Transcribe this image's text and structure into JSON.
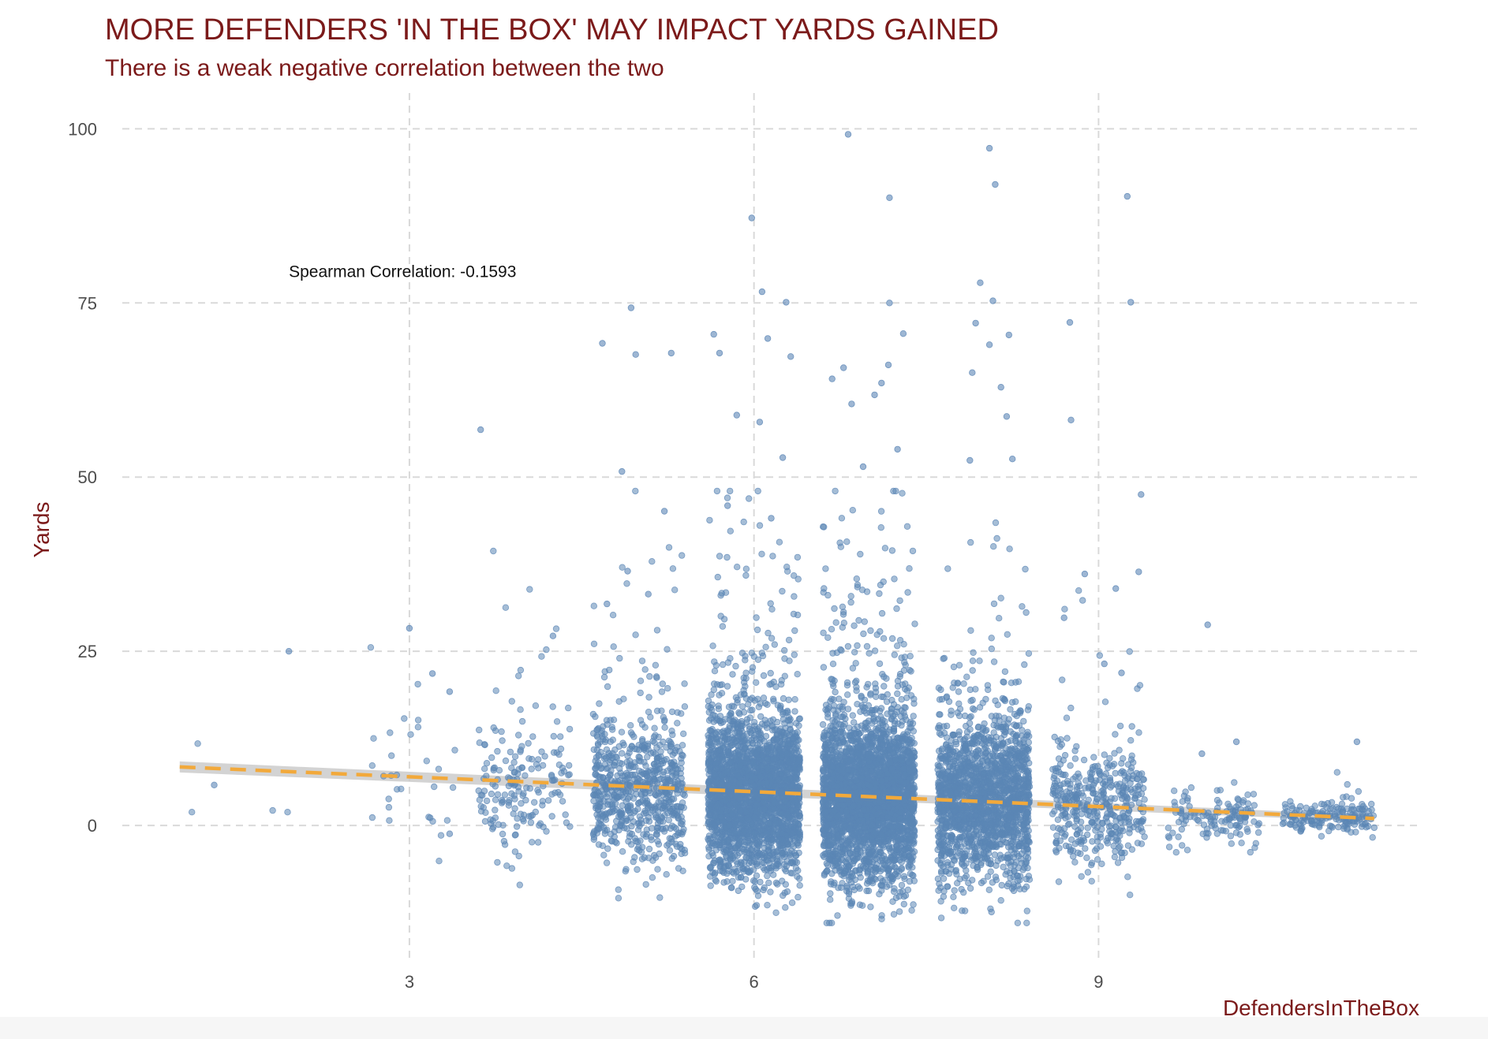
{
  "chart_data": {
    "type": "scatter",
    "title": "MORE DEFENDERS 'IN THE BOX' MAY IMPACT YARDS GAINED",
    "subtitle": "There is a weak negative correlation between the two",
    "xlabel": "DefendersInTheBox",
    "ylabel": "Yards",
    "xlim": [
      0.5,
      11.8
    ],
    "ylim": [
      -19,
      104
    ],
    "x_ticks": [
      3,
      6,
      9
    ],
    "y_ticks": [
      0,
      25,
      50,
      75,
      100
    ],
    "grid": true,
    "jitter_width": 0.4,
    "annotation": {
      "text": "Spearman Correlation: -0.1593",
      "x": 1.95,
      "y": 79.5
    },
    "trend_line": {
      "x": [
        1.0,
        11.4
      ],
      "y": [
        8.4,
        1.0
      ],
      "style": "dashed"
    },
    "groups": [
      {
        "x": 1,
        "count": 2,
        "center": 4.5,
        "spread": 4
      },
      {
        "x": 2,
        "count": 2,
        "center": 8,
        "spread": 6
      },
      {
        "x": 3,
        "count": 30,
        "center": 7,
        "spread": 5
      },
      {
        "x": 4,
        "count": 180,
        "center": 6,
        "spread": 5
      },
      {
        "x": 5,
        "count": 700,
        "center": 5,
        "spread": 5
      },
      {
        "x": 6,
        "count": 2600,
        "center": 4.2,
        "spread": 5.5
      },
      {
        "x": 7,
        "count": 3000,
        "center": 3.8,
        "spread": 5.8
      },
      {
        "x": 8,
        "count": 1800,
        "center": 3.2,
        "spread": 5.5
      },
      {
        "x": 9,
        "count": 420,
        "center": 2.6,
        "spread": 4
      },
      {
        "x": 10,
        "count": 130,
        "center": 1.2,
        "spread": 1.8
      },
      {
        "x": 11,
        "count": 170,
        "center": 1.0,
        "spread": 1.2
      }
    ],
    "outliers": [
      {
        "x": 1.3,
        "y": 5.8
      },
      {
        "x": 1.95,
        "y": 25
      },
      {
        "x": 3.0,
        "y": 28.3
      },
      {
        "x": 3.2,
        "y": 21.8
      },
      {
        "x": 3.35,
        "y": 19.2
      },
      {
        "x": 3.35,
        "y": -1.2
      },
      {
        "x": 3.62,
        "y": 56.8
      },
      {
        "x": 4.25,
        "y": 27.2
      },
      {
        "x": 4.68,
        "y": 69.2
      },
      {
        "x": 4.72,
        "y": 31.8
      },
      {
        "x": 4.85,
        "y": 50.8
      },
      {
        "x": 4.93,
        "y": 74.3
      },
      {
        "x": 4.97,
        "y": 67.6
      },
      {
        "x": 4.9,
        "y": 36.5
      },
      {
        "x": 5.08,
        "y": 33.2
      },
      {
        "x": 5.22,
        "y": 45.1
      },
      {
        "x": 5.28,
        "y": 67.8
      },
      {
        "x": 5.65,
        "y": 70.5
      },
      {
        "x": 5.7,
        "y": 67.8
      },
      {
        "x": 5.77,
        "y": 45.9
      },
      {
        "x": 5.85,
        "y": 58.9
      },
      {
        "x": 5.98,
        "y": 87.2
      },
      {
        "x": 6.05,
        "y": 57.9
      },
      {
        "x": 6.07,
        "y": 76.6
      },
      {
        "x": 6.12,
        "y": 69.9
      },
      {
        "x": 6.28,
        "y": 75.1
      },
      {
        "x": 6.32,
        "y": 67.3
      },
      {
        "x": 6.25,
        "y": 52.8
      },
      {
        "x": 6.15,
        "y": 44.1
      },
      {
        "x": 6.82,
        "y": 99.2
      },
      {
        "x": 6.68,
        "y": 64.1
      },
      {
        "x": 6.78,
        "y": 65.7
      },
      {
        "x": 6.85,
        "y": 60.5
      },
      {
        "x": 7.18,
        "y": 90.1
      },
      {
        "x": 7.18,
        "y": 75.0
      },
      {
        "x": 7.3,
        "y": 70.6
      },
      {
        "x": 7.17,
        "y": 66.1
      },
      {
        "x": 7.11,
        "y": 63.5
      },
      {
        "x": 7.05,
        "y": 61.8
      },
      {
        "x": 7.25,
        "y": 54.0
      },
      {
        "x": 6.95,
        "y": 51.5
      },
      {
        "x": 8.05,
        "y": 97.2
      },
      {
        "x": 8.1,
        "y": 92.0
      },
      {
        "x": 7.97,
        "y": 77.9
      },
      {
        "x": 7.93,
        "y": 72.1
      },
      {
        "x": 8.08,
        "y": 75.3
      },
      {
        "x": 8.05,
        "y": 69.0
      },
      {
        "x": 8.22,
        "y": 70.4
      },
      {
        "x": 7.9,
        "y": 65.0
      },
      {
        "x": 8.15,
        "y": 62.9
      },
      {
        "x": 8.2,
        "y": 58.7
      },
      {
        "x": 7.88,
        "y": 52.4
      },
      {
        "x": 8.25,
        "y": 52.6
      },
      {
        "x": 8.75,
        "y": 72.2
      },
      {
        "x": 8.76,
        "y": 58.2
      },
      {
        "x": 8.88,
        "y": 36.1
      },
      {
        "x": 8.7,
        "y": 29.8
      },
      {
        "x": 9.25,
        "y": 90.3
      },
      {
        "x": 9.28,
        "y": 75.1
      },
      {
        "x": 9.37,
        "y": 47.5
      },
      {
        "x": 9.35,
        "y": 36.4
      },
      {
        "x": 9.15,
        "y": 34.0
      },
      {
        "x": 9.2,
        "y": 21.9
      },
      {
        "x": 9.05,
        "y": 23.2
      },
      {
        "x": 9.95,
        "y": 28.8
      },
      {
        "x": 10.2,
        "y": 12.0
      },
      {
        "x": 9.9,
        "y": 10.3
      },
      {
        "x": 11.25,
        "y": 12.0
      }
    ]
  },
  "colors": {
    "title": "#7b1a1a",
    "points": "#5b86b5",
    "trend": "#f2a93b",
    "band": "#c8c8c8",
    "grid": "#d9d9d9",
    "tick_text": "#4d4d4d"
  }
}
